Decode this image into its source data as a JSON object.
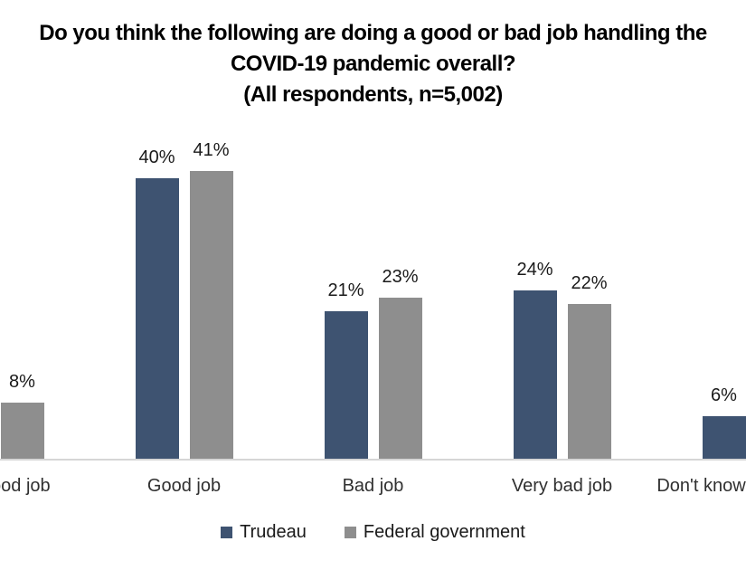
{
  "title": {
    "line1": "Do you think the following are doing a good or bad job handling the",
    "line2": "COVID-19 pandemic overall?",
    "line3": "(All respondents, n=5,002)"
  },
  "legend": {
    "items": [
      {
        "label": "Trudeau",
        "color": "#3E5371"
      },
      {
        "label": "Federal government",
        "color": "#8E8E8E"
      }
    ]
  },
  "chart_data": {
    "type": "bar",
    "title": "Do you think the following are doing a good or bad job handling the COVID-19 pandemic overall? (All respondents, n=5,002)",
    "categories": [
      "Very good job",
      "Good job",
      "Bad job",
      "Very bad job",
      "Don't know"
    ],
    "series": [
      {
        "name": "Trudeau",
        "color": "#3E5371",
        "values": [
          null,
          40,
          21,
          24,
          6
        ]
      },
      {
        "name": "Federal government",
        "color": "#8E8E8E",
        "values": [
          8,
          41,
          23,
          22,
          null
        ]
      }
    ],
    "value_label_suffix": "%",
    "ylim": [
      0,
      45
    ],
    "grid": false,
    "legend_position": "bottom",
    "crop_note": "Image is cropped horizontally: first category label shows only 'od job' and its Trudeau bar is off-screen left; 'Don't know' label is clipped at right and its Federal government bar is off-screen right. Null values = bar not visible in screenshot."
  },
  "colors": {
    "background": "#ffffff",
    "axis_line": "#d6d6d6",
    "label_text": "#303030",
    "title_text": "#000000"
  }
}
